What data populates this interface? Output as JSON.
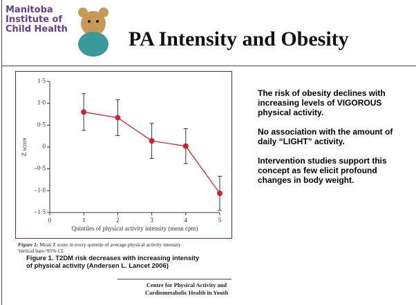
{
  "header": {
    "logo_lines": [
      "Manitoba",
      "Institute of",
      "Child Health"
    ],
    "title": "PA Intensity and Obesity"
  },
  "chart_data": {
    "type": "errorbar",
    "ylabel": "Z score",
    "xlabel": "Quintiles of physical activity intensity (mean cpm)",
    "x": [
      1,
      2,
      3,
      4,
      5
    ],
    "series": [
      {
        "color": "#d8202a",
        "values": [
          0.8,
          0.67,
          0.14,
          0.02,
          -1.06
        ],
        "errors": [
          0.42,
          0.41,
          0.4,
          0.4,
          0.39
        ]
      }
    ],
    "xlim": [
      0,
      5
    ],
    "xticks": [
      0,
      1,
      2,
      3,
      4,
      5
    ],
    "ylim": [
      -1.5,
      1.5
    ],
    "yticks": [
      {
        "value": 1.5,
        "label": "1·5"
      },
      {
        "value": 1.0,
        "label": "1·0"
      },
      {
        "value": 0.5,
        "label": "0·5"
      },
      0,
      {
        "value": -0.5,
        "label": "–0·5"
      },
      {
        "value": -1.0,
        "label": "–1·0"
      },
      {
        "value": -1.5,
        "label": "–1·5"
      }
    ],
    "grid": false
  },
  "caption": {
    "label": "Figure 1:",
    "text": "Mean Z score in every quintile of average physical activity intensity",
    "note": "Vertical bars=95% CI.",
    "summary": [
      "Figure 1. T2DM risk decreases with increasing intensity",
      "of physical activity (Andersen L. Lancet 2006)"
    ]
  },
  "bullets": [
    "The risk of obesity declines with increasing levels of VIGOROUS physical activity.",
    "No association with the amount of daily “LIGHT” activity.",
    "Intervention studies support this concept as few elicit profound changes in body weight."
  ],
  "footer": [
    "Centre for Physical Activity and",
    "Cardiometabolic Health in Youth"
  ]
}
